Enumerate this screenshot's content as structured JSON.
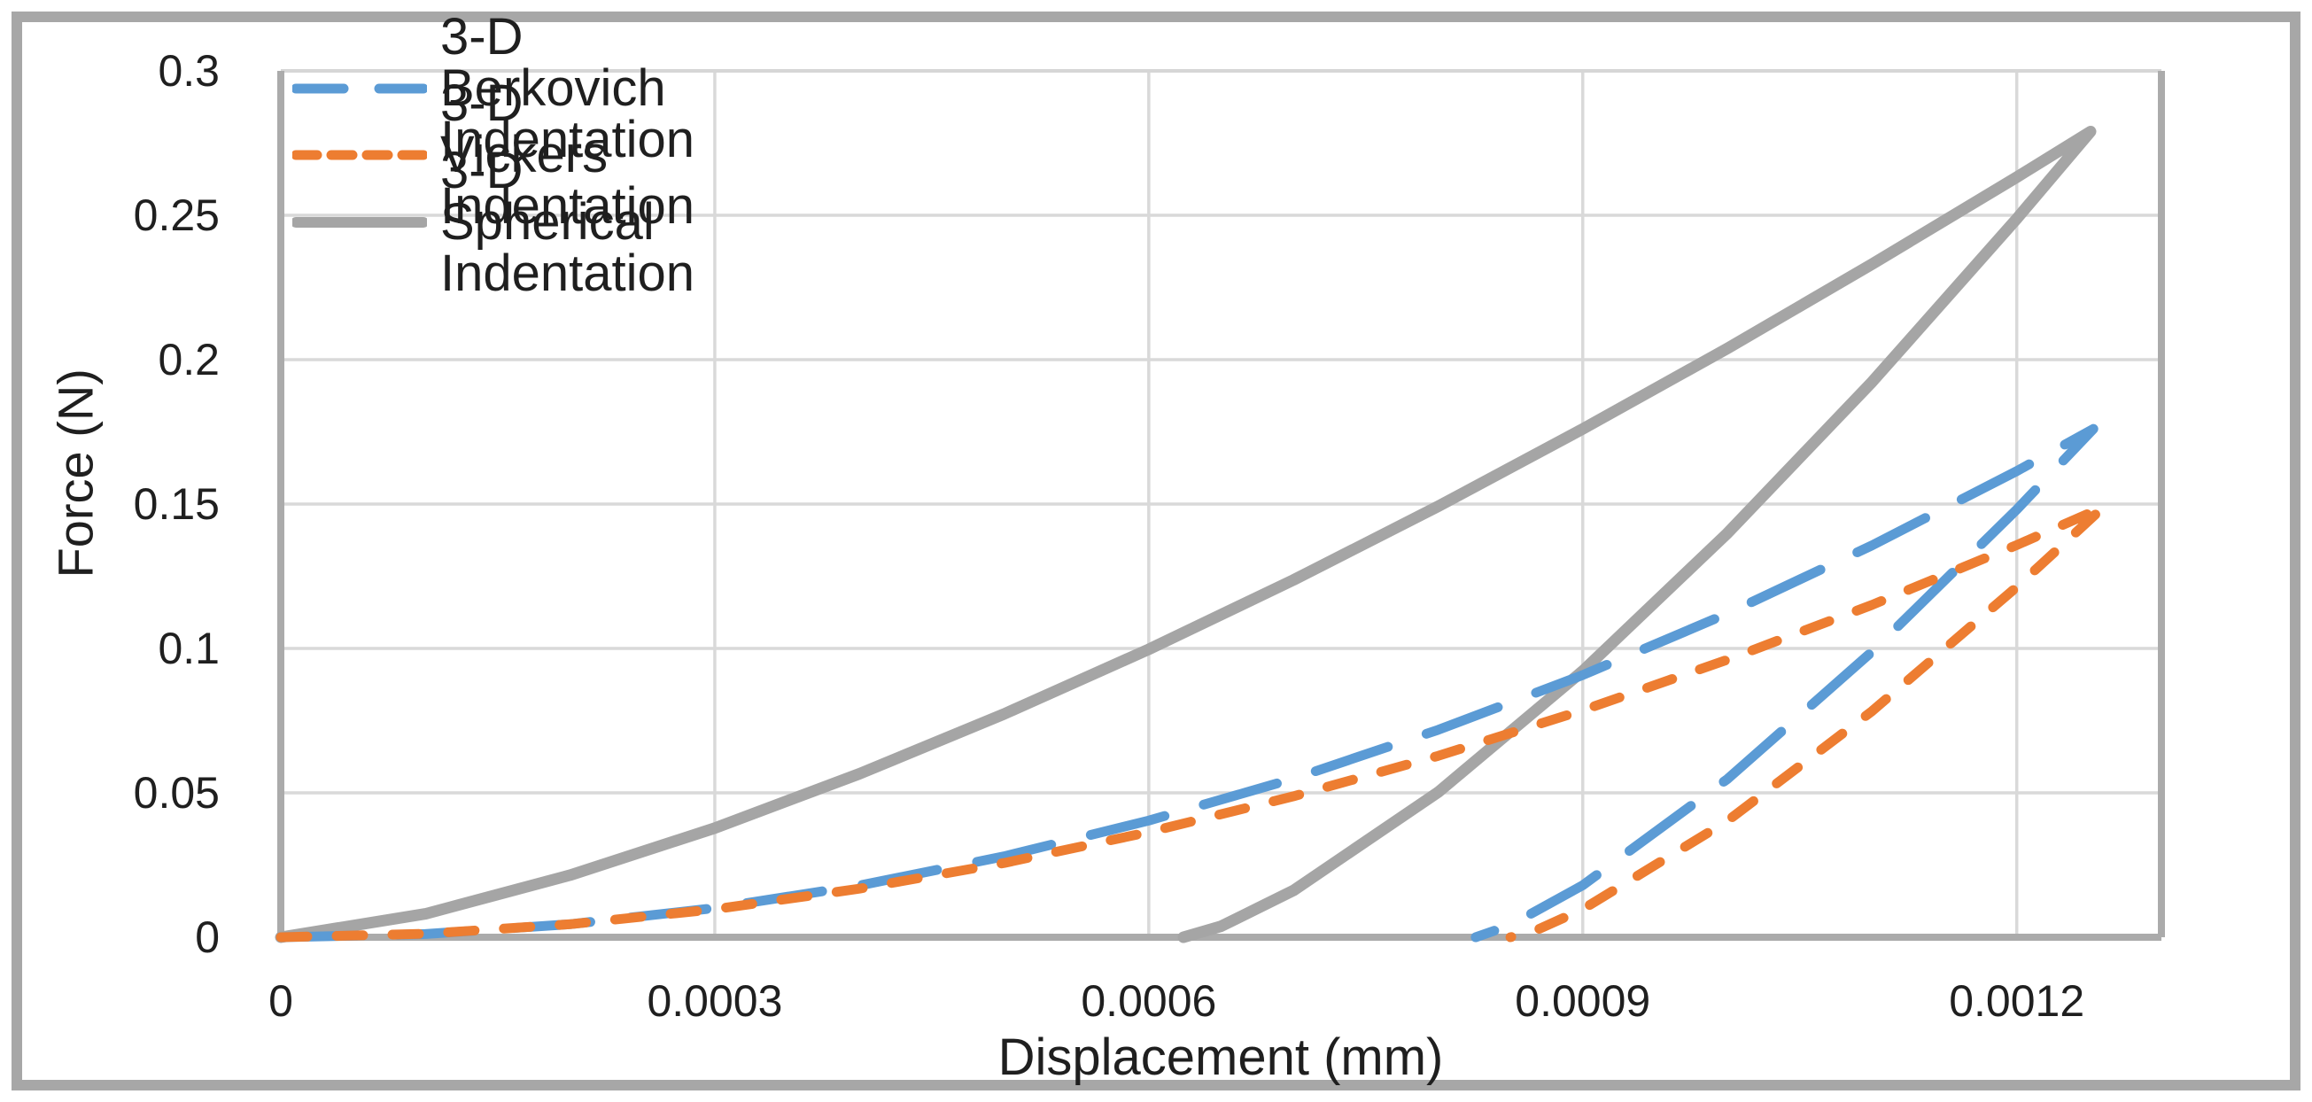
{
  "chart_data": {
    "type": "line",
    "title": "",
    "xlabel": "Displacement (mm)",
    "ylabel": "Force (N)",
    "xlim": [
      0,
      0.0013
    ],
    "ylim": [
      0,
      0.3
    ],
    "grid": "both",
    "legend_position": "top-left",
    "x_ticks": [
      {
        "value": 0,
        "label": "0"
      },
      {
        "value": 0.0003,
        "label": "0.0003"
      },
      {
        "value": 0.0006,
        "label": "0.0006"
      },
      {
        "value": 0.0009,
        "label": "0.0009"
      },
      {
        "value": 0.0012,
        "label": "0.0012"
      }
    ],
    "y_ticks": [
      {
        "value": 0,
        "label": "0"
      },
      {
        "value": 0.05,
        "label": "0.05"
      },
      {
        "value": 0.1,
        "label": "0.1"
      },
      {
        "value": 0.15,
        "label": "0.15"
      },
      {
        "value": 0.2,
        "label": "0.2"
      },
      {
        "value": 0.25,
        "label": "0.25"
      },
      {
        "value": 0.3,
        "label": "0.3"
      }
    ],
    "draw_order": [
      2,
      0,
      1
    ],
    "series": [
      {
        "name": "3-D Berkovich Indentation",
        "color": "#5B9BD5",
        "line_style": "long-dash",
        "loading": [
          [
            0,
            0
          ],
          [
            0.0001,
            0.0011
          ],
          [
            0.0002,
            0.0045
          ],
          [
            0.0003,
            0.0101
          ],
          [
            0.0004,
            0.0179
          ],
          [
            0.0005,
            0.028
          ],
          [
            0.0006,
            0.0404
          ],
          [
            0.0007,
            0.0549
          ],
          [
            0.0008,
            0.0718
          ],
          [
            0.0009,
            0.0908
          ],
          [
            0.001,
            0.1121
          ],
          [
            0.0011,
            0.1357
          ],
          [
            0.0012,
            0.1614
          ],
          [
            0.001253,
            0.176
          ]
        ],
        "unloading": [
          [
            0.001253,
            0.176
          ],
          [
            0.0012,
            0.1481
          ],
          [
            0.0011,
            0.0989
          ],
          [
            0.001,
            0.0548
          ],
          [
            0.0009,
            0.018
          ],
          [
            0.00085,
            0.0042
          ],
          [
            0.000826,
            0
          ]
        ]
      },
      {
        "name": "3-D Vickers Indentation",
        "color": "#ED7D31",
        "line_style": "short-dash",
        "loading": [
          [
            0,
            0
          ],
          [
            0.0001,
            0.0012
          ],
          [
            0.0002,
            0.0045
          ],
          [
            0.0003,
            0.0097
          ],
          [
            0.0004,
            0.0168
          ],
          [
            0.0005,
            0.0257
          ],
          [
            0.0006,
            0.0364
          ],
          [
            0.0007,
            0.0488
          ],
          [
            0.0008,
            0.0628
          ],
          [
            0.0009,
            0.0786
          ],
          [
            0.001,
            0.0961
          ],
          [
            0.0011,
            0.1151
          ],
          [
            0.0012,
            0.1358
          ],
          [
            0.00126,
            0.149
          ]
        ],
        "unloading": [
          [
            0.00126,
            0.149
          ],
          [
            0.0012,
            0.1213
          ],
          [
            0.0011,
            0.0783
          ],
          [
            0.001,
            0.0403
          ],
          [
            0.0009,
            0.0097
          ],
          [
            0.00087,
            0.0029
          ],
          [
            0.00085,
            0
          ]
        ]
      },
      {
        "name": "3-D Spherical Indentation",
        "color": "#A5A5A5",
        "line_style": "solid",
        "loading": [
          [
            0,
            0
          ],
          [
            0.0001,
            0.0081
          ],
          [
            0.0002,
            0.0215
          ],
          [
            0.0003,
            0.0378
          ],
          [
            0.0004,
            0.0566
          ],
          [
            0.0005,
            0.0773
          ],
          [
            0.0006,
            0.0997
          ],
          [
            0.0007,
            0.1237
          ],
          [
            0.0008,
            0.1492
          ],
          [
            0.0009,
            0.176
          ],
          [
            0.001,
            0.2039
          ],
          [
            0.0011,
            0.2331
          ],
          [
            0.0012,
            0.2632
          ],
          [
            0.001251,
            0.279
          ]
        ],
        "unloading": [
          [
            0.001251,
            0.279
          ],
          [
            0.0012,
            0.2488
          ],
          [
            0.0011,
            0.1923
          ],
          [
            0.001,
            0.1399
          ],
          [
            0.0009,
            0.0922
          ],
          [
            0.0008,
            0.0502
          ],
          [
            0.0007,
            0.0162
          ],
          [
            0.00065,
            0.0038
          ],
          [
            0.000624,
            0
          ]
        ]
      }
    ],
    "colors": {
      "gridline": "#d9d9d9",
      "axis_line": "#ababab",
      "plot_border": "#d6d6d6",
      "text": "#1f1f1f",
      "figure_border": "#a7a7a7"
    }
  }
}
